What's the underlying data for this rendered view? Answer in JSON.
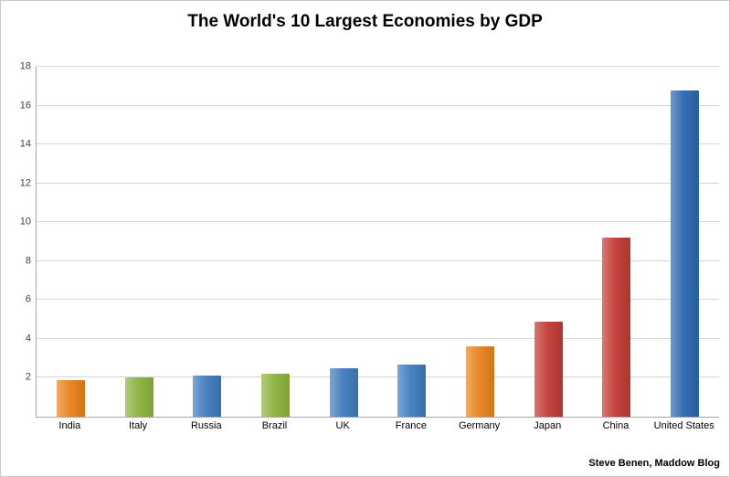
{
  "title": "The World's 10 Largest Economies by GDP",
  "attribution": "Steve Benen, Maddow Blog",
  "chart_data": {
    "type": "bar",
    "title": "The World's 10 Largest Economies by GDP",
    "categories": [
      "India",
      "Italy",
      "Russia",
      "Brazil",
      "UK",
      "France",
      "Germany",
      "Japan",
      "China",
      "United States"
    ],
    "values": [
      1.9,
      2.0,
      2.1,
      2.2,
      2.5,
      2.7,
      3.6,
      4.9,
      9.2,
      16.8
    ],
    "bar_colors": [
      "#e8821d",
      "#8cb23d",
      "#3f7cbe",
      "#8cb23d",
      "#3f7cbe",
      "#3f7cbe",
      "#e8821d",
      "#c23b36",
      "#c23b36",
      "#2c68ac"
    ],
    "xlabel": "",
    "ylabel": "",
    "ylim": [
      0,
      18
    ],
    "yticks": [
      2,
      4,
      6,
      8,
      10,
      12,
      14,
      16,
      18
    ],
    "grid": true,
    "legend": false,
    "colors": {
      "gridline": "#d6d6d6",
      "axis": "#a6a6a6",
      "tick_text": "#3f3f3f"
    }
  }
}
